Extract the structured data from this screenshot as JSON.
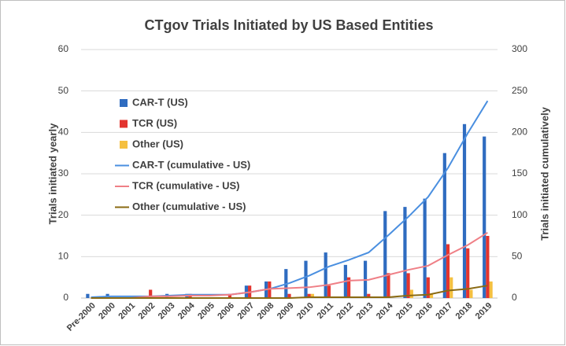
{
  "chart_data": {
    "type": "bar",
    "title": "CTgov Trials Initiated by US Based Entities",
    "y_label": "Trials initiated yearly",
    "y2_label": "Trials initiated cumulatively",
    "categories": [
      "Pre-2000",
      "2000",
      "2001",
      "2002",
      "2003",
      "2004",
      "2005",
      "2006",
      "2007",
      "2008",
      "2009",
      "2010",
      "2011",
      "2012",
      "2013",
      "2014",
      "2015",
      "2016",
      "2017",
      "2018",
      "2019"
    ],
    "series": [
      {
        "name": "CAR-T (US)",
        "type": "bar",
        "color": "#2f6cc0",
        "values": [
          1,
          1,
          0,
          0,
          1,
          1,
          0,
          0,
          3,
          4,
          7,
          9,
          11,
          8,
          9,
          21,
          22,
          24,
          35,
          42,
          39
        ]
      },
      {
        "name": "TCR (US)",
        "type": "bar",
        "color": "#e3342f",
        "values": [
          0,
          0,
          0,
          2,
          0,
          1,
          0,
          1,
          3,
          4,
          1,
          1,
          3,
          5,
          1,
          6,
          6,
          5,
          13,
          12,
          15
        ]
      },
      {
        "name": "Other (US)",
        "type": "bar",
        "color": "#f5c040",
        "values": [
          0,
          0,
          0,
          0,
          0,
          0,
          0,
          0,
          0,
          0,
          0,
          1,
          0,
          0,
          0,
          0,
          2,
          1,
          5,
          2,
          4
        ]
      },
      {
        "name": "CAR-T (cumulative - US)",
        "type": "line",
        "axis": "y2",
        "color": "#4a8fe0",
        "values": [
          1,
          2,
          2,
          2,
          3,
          4,
          4,
          4,
          7,
          11,
          18,
          27,
          38,
          46,
          55,
          76,
          98,
          122,
          157,
          199,
          238
        ]
      },
      {
        "name": "TCR (cumulative - US)",
        "type": "line",
        "axis": "y2",
        "color": "#ef7f86",
        "values": [
          0,
          0,
          0,
          2,
          2,
          3,
          3,
          4,
          7,
          11,
          12,
          13,
          16,
          21,
          22,
          28,
          34,
          39,
          52,
          64,
          79
        ]
      },
      {
        "name": "Other (cumulative - US)",
        "type": "line",
        "axis": "y2",
        "color": "#8a6a12",
        "values": [
          0,
          0,
          0,
          0,
          0,
          0,
          0,
          0,
          0,
          0,
          0,
          1,
          1,
          1,
          1,
          1,
          3,
          4,
          9,
          11,
          15
        ]
      }
    ],
    "ylim": [
      0,
      60
    ],
    "yticks": [
      0,
      10,
      20,
      30,
      40,
      50,
      60
    ],
    "y2lim": [
      0,
      300
    ],
    "y2ticks": [
      0,
      50,
      100,
      150,
      200,
      250,
      300
    ],
    "grid": true,
    "legend": "upper left"
  }
}
